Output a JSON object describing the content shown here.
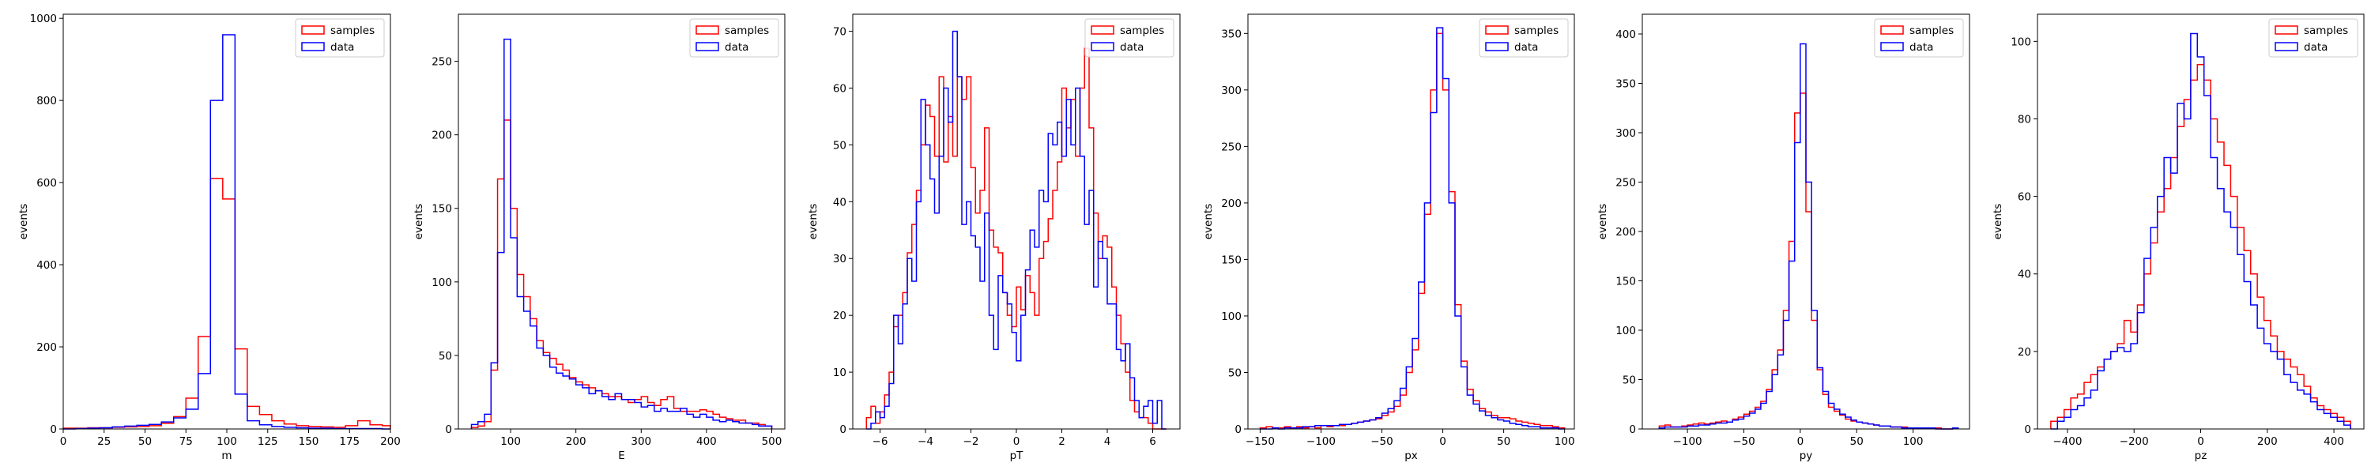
{
  "colors": {
    "samples": "#ff0000",
    "data": "#0000ff",
    "axes": "#000000",
    "legend_border": "#cccccc"
  },
  "chart_data": [
    {
      "type": "histogram",
      "xlabel": "m",
      "ylabel": "events",
      "xlim": [
        0,
        200
      ],
      "ylim": [
        0,
        1010
      ],
      "xticks": [
        0,
        25,
        50,
        75,
        100,
        125,
        150,
        175,
        200
      ],
      "yticks": [
        0,
        200,
        400,
        600,
        800,
        1000
      ],
      "legend": {
        "placement": "top-right",
        "entries": [
          "samples",
          "data"
        ]
      },
      "bin_edges": [
        0,
        7.5,
        15,
        22.5,
        30,
        37.5,
        45,
        52.5,
        60,
        67.5,
        75,
        82.5,
        90,
        97.5,
        105,
        112.5,
        120,
        127.5,
        135,
        142.5,
        150,
        157.5,
        165,
        172.5,
        180,
        187.5,
        195,
        200
      ],
      "series": [
        {
          "name": "samples",
          "counts": [
            2,
            2,
            3,
            3,
            4,
            5,
            6,
            8,
            14,
            30,
            75,
            225,
            610,
            560,
            195,
            55,
            35,
            20,
            12,
            8,
            6,
            5,
            4,
            8,
            20,
            10,
            8
          ]
        },
        {
          "name": "data",
          "counts": [
            0,
            1,
            2,
            3,
            5,
            7,
            9,
            11,
            17,
            27,
            48,
            135,
            800,
            960,
            85,
            20,
            10,
            6,
            4,
            3,
            2,
            2,
            1,
            1,
            1,
            1,
            0
          ]
        }
      ]
    },
    {
      "type": "histogram",
      "xlabel": "E",
      "ylabel": "events",
      "xlim": [
        20,
        520
      ],
      "ylim": [
        0,
        282
      ],
      "xticks": [
        100,
        200,
        300,
        400,
        500
      ],
      "yticks": [
        0,
        50,
        100,
        150,
        200,
        250
      ],
      "legend": {
        "placement": "top-right",
        "entries": [
          "samples",
          "data"
        ]
      },
      "bin_edges": [
        40,
        50,
        60,
        70,
        80,
        90,
        100,
        110,
        120,
        130,
        140,
        150,
        160,
        170,
        180,
        190,
        200,
        210,
        220,
        230,
        240,
        250,
        260,
        270,
        280,
        290,
        300,
        310,
        320,
        330,
        340,
        350,
        360,
        370,
        380,
        390,
        400,
        410,
        420,
        430,
        440,
        450,
        460,
        470,
        480,
        490,
        500
      ],
      "series": [
        {
          "name": "samples",
          "counts": [
            1,
            2,
            5,
            40,
            170,
            210,
            150,
            105,
            90,
            75,
            60,
            52,
            48,
            44,
            40,
            35,
            32,
            30,
            28,
            26,
            24,
            22,
            22,
            20,
            18,
            20,
            22,
            18,
            16,
            20,
            22,
            14,
            12,
            12,
            12,
            13,
            12,
            10,
            8,
            7,
            6,
            6,
            4,
            4,
            3,
            2
          ]
        },
        {
          "name": "data",
          "counts": [
            3,
            5,
            10,
            45,
            120,
            265,
            130,
            90,
            80,
            70,
            55,
            50,
            42,
            38,
            36,
            34,
            30,
            28,
            24,
            26,
            22,
            20,
            24,
            20,
            20,
            18,
            15,
            16,
            12,
            14,
            12,
            12,
            14,
            10,
            8,
            10,
            8,
            6,
            5,
            6,
            5,
            4,
            4,
            3,
            2,
            2
          ]
        }
      ]
    },
    {
      "type": "histogram",
      "xlabel": "pT",
      "ylabel": "events",
      "xlim": [
        -7.2,
        7.2
      ],
      "ylim": [
        0,
        73
      ],
      "xticks": [
        -6,
        -4,
        -2,
        0,
        2,
        4,
        6
      ],
      "yticks": [
        0,
        10,
        20,
        30,
        40,
        50,
        60,
        70
      ],
      "legend": {
        "placement": "top-right",
        "entries": [
          "samples",
          "data"
        ]
      },
      "bin_edges": [
        -6.6,
        -6.4,
        -6.2,
        -6.0,
        -5.8,
        -5.6,
        -5.4,
        -5.2,
        -5.0,
        -4.8,
        -4.6,
        -4.4,
        -4.2,
        -4.0,
        -3.8,
        -3.6,
        -3.4,
        -3.2,
        -3.0,
        -2.8,
        -2.6,
        -2.4,
        -2.2,
        -2.0,
        -1.8,
        -1.6,
        -1.4,
        -1.2,
        -1.0,
        -0.8,
        -0.6,
        -0.4,
        -0.2,
        0.0,
        0.2,
        0.4,
        0.6,
        0.8,
        1.0,
        1.2,
        1.4,
        1.6,
        1.8,
        2.0,
        2.2,
        2.4,
        2.6,
        2.8,
        3.0,
        3.2,
        3.4,
        3.6,
        3.8,
        4.0,
        4.2,
        4.4,
        4.6,
        4.8,
        5.0,
        5.2,
        5.4,
        5.6,
        5.8,
        6.0,
        6.2,
        6.4,
        6.6
      ],
      "series": [
        {
          "name": "samples",
          "counts": [
            2,
            4,
            1,
            3,
            6,
            10,
            18,
            20,
            24,
            31,
            36,
            42,
            50,
            57,
            55,
            48,
            62,
            47,
            55,
            48,
            62,
            58,
            62,
            46,
            38,
            42,
            53,
            35,
            32,
            31,
            24,
            20,
            18,
            25,
            21,
            27,
            24,
            20,
            30,
            33,
            37,
            42,
            47,
            60,
            53,
            58,
            48,
            60,
            67,
            53,
            38,
            30,
            34,
            32,
            25,
            20,
            15,
            10,
            5,
            3,
            2,
            2,
            1,
            0,
            0,
            0
          ]
        },
        {
          "name": "data",
          "counts": [
            0,
            1,
            3,
            2,
            4,
            8,
            20,
            15,
            22,
            30,
            26,
            40,
            58,
            50,
            44,
            38,
            48,
            60,
            54,
            70,
            62,
            36,
            40,
            34,
            32,
            26,
            38,
            20,
            14,
            27,
            24,
            22,
            17,
            12,
            20,
            28,
            35,
            32,
            42,
            40,
            52,
            50,
            54,
            48,
            58,
            50,
            60,
            48,
            36,
            42,
            25,
            33,
            30,
            22,
            22,
            14,
            12,
            15,
            9,
            5,
            2,
            4,
            5,
            1,
            5,
            0
          ]
        }
      ]
    },
    {
      "type": "histogram",
      "xlabel": "px",
      "ylabel": "events",
      "xlim": [
        -160,
        108
      ],
      "ylim": [
        0,
        367
      ],
      "xticks": [
        -150,
        -100,
        -50,
        0,
        50,
        100
      ],
      "yticks": [
        0,
        50,
        100,
        150,
        200,
        250,
        300,
        350
      ],
      "legend": {
        "placement": "top-right",
        "entries": [
          "samples",
          "data"
        ]
      },
      "bin_edges": [
        -150,
        -145,
        -140,
        -135,
        -130,
        -125,
        -120,
        -115,
        -110,
        -105,
        -100,
        -95,
        -90,
        -85,
        -80,
        -75,
        -70,
        -65,
        -60,
        -55,
        -50,
        -45,
        -40,
        -35,
        -30,
        -25,
        -20,
        -15,
        -10,
        -5,
        0,
        5,
        10,
        15,
        20,
        25,
        30,
        35,
        40,
        45,
        50,
        55,
        60,
        65,
        70,
        75,
        80,
        85,
        90,
        95,
        100
      ],
      "series": [
        {
          "name": "samples",
          "counts": [
            1,
            2,
            1,
            1,
            2,
            1,
            2,
            1,
            2,
            1,
            3,
            2,
            3,
            3,
            4,
            5,
            6,
            7,
            8,
            9,
            12,
            15,
            20,
            30,
            50,
            70,
            120,
            190,
            300,
            350,
            300,
            210,
            110,
            60,
            35,
            25,
            18,
            15,
            12,
            10,
            10,
            9,
            7,
            6,
            5,
            4,
            3,
            3,
            2,
            1
          ]
        },
        {
          "name": "data",
          "counts": [
            0,
            0,
            1,
            0,
            1,
            1,
            1,
            2,
            2,
            3,
            3,
            3,
            3,
            4,
            4,
            5,
            6,
            7,
            8,
            10,
            14,
            18,
            25,
            36,
            55,
            80,
            130,
            200,
            280,
            355,
            310,
            200,
            100,
            55,
            30,
            22,
            16,
            12,
            10,
            8,
            7,
            5,
            4,
            3,
            2,
            2,
            1,
            1,
            1,
            0
          ]
        }
      ]
    },
    {
      "type": "histogram",
      "xlabel": "py",
      "ylabel": "events",
      "xlim": [
        -140,
        150
      ],
      "ylim": [
        0,
        420
      ],
      "xticks": [
        -100,
        -50,
        0,
        50,
        100
      ],
      "yticks": [
        0,
        50,
        100,
        150,
        200,
        250,
        300,
        350,
        400
      ],
      "legend": {
        "placement": "top-right",
        "entries": [
          "samples",
          "data"
        ]
      },
      "bin_edges": [
        -125,
        -120,
        -115,
        -110,
        -105,
        -100,
        -95,
        -90,
        -85,
        -80,
        -75,
        -70,
        -65,
        -60,
        -55,
        -50,
        -45,
        -40,
        -35,
        -30,
        -25,
        -20,
        -15,
        -10,
        -5,
        0,
        5,
        10,
        15,
        20,
        25,
        30,
        35,
        40,
        45,
        50,
        55,
        60,
        65,
        70,
        75,
        80,
        85,
        90,
        95,
        100,
        105,
        110,
        115,
        120,
        125,
        130,
        135,
        140
      ],
      "series": [
        {
          "name": "samples",
          "counts": [
            3,
            4,
            2,
            2,
            3,
            4,
            5,
            6,
            5,
            6,
            7,
            8,
            7,
            10,
            12,
            15,
            18,
            22,
            28,
            40,
            60,
            80,
            120,
            190,
            320,
            340,
            220,
            110,
            60,
            35,
            22,
            18,
            14,
            10,
            8,
            7,
            6,
            5,
            4,
            3,
            3,
            2,
            2,
            2,
            1,
            1,
            1,
            1,
            1,
            1,
            0,
            0,
            1
          ]
        },
        {
          "name": "data",
          "counts": [
            1,
            2,
            2,
            2,
            2,
            3,
            3,
            4,
            4,
            5,
            6,
            6,
            7,
            9,
            10,
            13,
            16,
            20,
            26,
            38,
            55,
            75,
            110,
            170,
            290,
            390,
            250,
            120,
            62,
            38,
            26,
            20,
            15,
            12,
            9,
            7,
            6,
            5,
            4,
            3,
            3,
            2,
            2,
            1,
            1,
            1,
            1,
            1,
            1,
            0,
            0,
            0,
            1
          ]
        }
      ]
    },
    {
      "type": "histogram",
      "xlabel": "pz",
      "ylabel": "events",
      "xlim": [
        -490,
        490
      ],
      "ylim": [
        0,
        107
      ],
      "xticks": [
        -400,
        -200,
        0,
        200,
        400
      ],
      "yticks": [
        0,
        20,
        40,
        60,
        80,
        100
      ],
      "legend": {
        "placement": "top-right",
        "entries": [
          "samples",
          "data"
        ]
      },
      "bin_edges": [
        -450,
        -430,
        -410,
        -390,
        -370,
        -350,
        -330,
        -310,
        -290,
        -270,
        -250,
        -230,
        -210,
        -190,
        -170,
        -150,
        -130,
        -110,
        -90,
        -70,
        -50,
        -30,
        -10,
        10,
        30,
        50,
        70,
        90,
        110,
        130,
        150,
        170,
        190,
        210,
        230,
        250,
        270,
        290,
        310,
        330,
        350,
        370,
        390,
        410,
        430,
        450
      ],
      "series": [
        {
          "name": "samples",
          "counts": [
            2,
            3,
            5,
            8,
            9,
            12,
            14,
            16,
            18,
            20,
            22,
            28,
            25,
            32,
            40,
            48,
            56,
            62,
            70,
            78,
            85,
            90,
            94,
            90,
            80,
            74,
            68,
            60,
            52,
            46,
            40,
            34,
            28,
            24,
            20,
            18,
            16,
            14,
            11,
            8,
            6,
            5,
            4,
            3,
            2
          ]
        },
        {
          "name": "data",
          "counts": [
            0,
            2,
            3,
            5,
            6,
            8,
            10,
            15,
            18,
            20,
            21,
            20,
            22,
            30,
            44,
            52,
            60,
            70,
            66,
            84,
            80,
            102,
            96,
            86,
            70,
            62,
            56,
            52,
            45,
            38,
            32,
            26,
            22,
            20,
            18,
            14,
            12,
            10,
            9,
            7,
            5,
            4,
            3,
            2,
            1
          ]
        }
      ]
    }
  ]
}
